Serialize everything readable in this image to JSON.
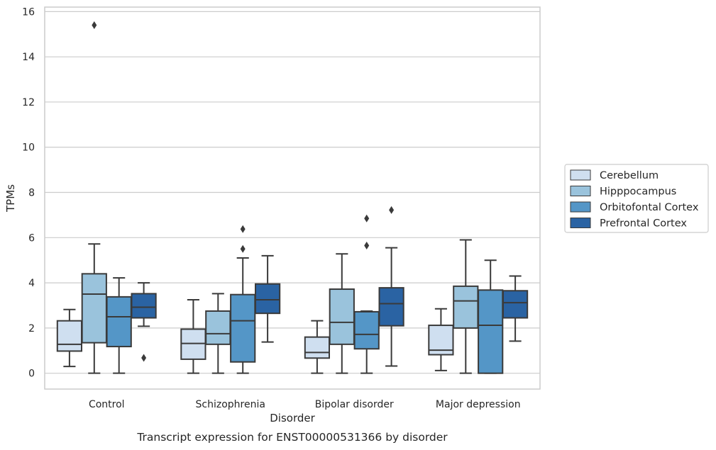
{
  "chart_data": {
    "type": "box",
    "title": "",
    "caption": "Transcript expression for ENST00000531366 by disorder",
    "xlabel": "Disorder",
    "ylabel": "TPMs",
    "ylim": [
      -0.7,
      16.2
    ],
    "yticks": [
      0,
      2,
      4,
      6,
      8,
      10,
      12,
      14,
      16
    ],
    "grid": true,
    "legend_position": "right",
    "categories": [
      "Control",
      "Schizophrenia",
      "Bipolar disorder",
      "Major depression"
    ],
    "series": [
      {
        "name": "Cerebellum",
        "color": "#cfdff0",
        "boxes": [
          {
            "whislo": 0.3,
            "q1": 0.98,
            "med": 1.28,
            "q3": 2.32,
            "whishi": 2.82,
            "fliers": []
          },
          {
            "whislo": 0.0,
            "q1": 0.62,
            "med": 1.32,
            "q3": 1.95,
            "whishi": 3.25,
            "fliers": []
          },
          {
            "whislo": 0.0,
            "q1": 0.67,
            "med": 0.92,
            "q3": 1.6,
            "whishi": 2.32,
            "fliers": []
          },
          {
            "whislo": 0.12,
            "q1": 0.82,
            "med": 1.02,
            "q3": 2.12,
            "whishi": 2.85,
            "fliers": []
          }
        ]
      },
      {
        "name": "Hipppocampus",
        "color": "#9ac3dc",
        "boxes": [
          {
            "whislo": 0.0,
            "q1": 1.35,
            "med": 3.5,
            "q3": 4.4,
            "whishi": 5.72,
            "fliers": [
              15.4
            ]
          },
          {
            "whislo": 0.0,
            "q1": 1.28,
            "med": 1.75,
            "q3": 2.75,
            "whishi": 3.52,
            "fliers": []
          },
          {
            "whislo": 0.0,
            "q1": 1.28,
            "med": 2.25,
            "q3": 3.72,
            "whishi": 5.28,
            "fliers": []
          },
          {
            "whislo": 0.0,
            "q1": 2.0,
            "med": 3.2,
            "q3": 3.85,
            "whishi": 5.9,
            "fliers": []
          }
        ]
      },
      {
        "name": "Orbitofontal Cortex",
        "color": "#5496c7",
        "boxes": [
          {
            "whislo": 0.0,
            "q1": 1.18,
            "med": 2.5,
            "q3": 3.38,
            "whishi": 4.22,
            "fliers": []
          },
          {
            "whislo": 0.0,
            "q1": 0.5,
            "med": 2.32,
            "q3": 3.48,
            "whishi": 5.1,
            "fliers": [
              6.38,
              5.5
            ]
          },
          {
            "whislo": 0.0,
            "q1": 1.08,
            "med": 1.72,
            "q3": 2.72,
            "whishi": 2.75,
            "fliers": [
              6.85,
              5.65
            ]
          },
          {
            "whislo": 0.0,
            "q1": 0.0,
            "med": 2.12,
            "q3": 3.68,
            "whishi": 5.0,
            "fliers": []
          }
        ]
      },
      {
        "name": "Prefrontal Cortex",
        "color": "#2a63a3",
        "boxes": [
          {
            "whislo": 2.08,
            "q1": 2.45,
            "med": 2.92,
            "q3": 3.52,
            "whishi": 4.0,
            "fliers": [
              0.68
            ]
          },
          {
            "whislo": 1.38,
            "q1": 2.65,
            "med": 3.25,
            "q3": 3.95,
            "whishi": 5.2,
            "fliers": []
          },
          {
            "whislo": 0.32,
            "q1": 2.1,
            "med": 3.08,
            "q3": 3.78,
            "whishi": 5.55,
            "fliers": [
              7.22
            ]
          },
          {
            "whislo": 1.42,
            "q1": 2.45,
            "med": 3.12,
            "q3": 3.65,
            "whishi": 4.3,
            "fliers": []
          }
        ]
      }
    ]
  }
}
